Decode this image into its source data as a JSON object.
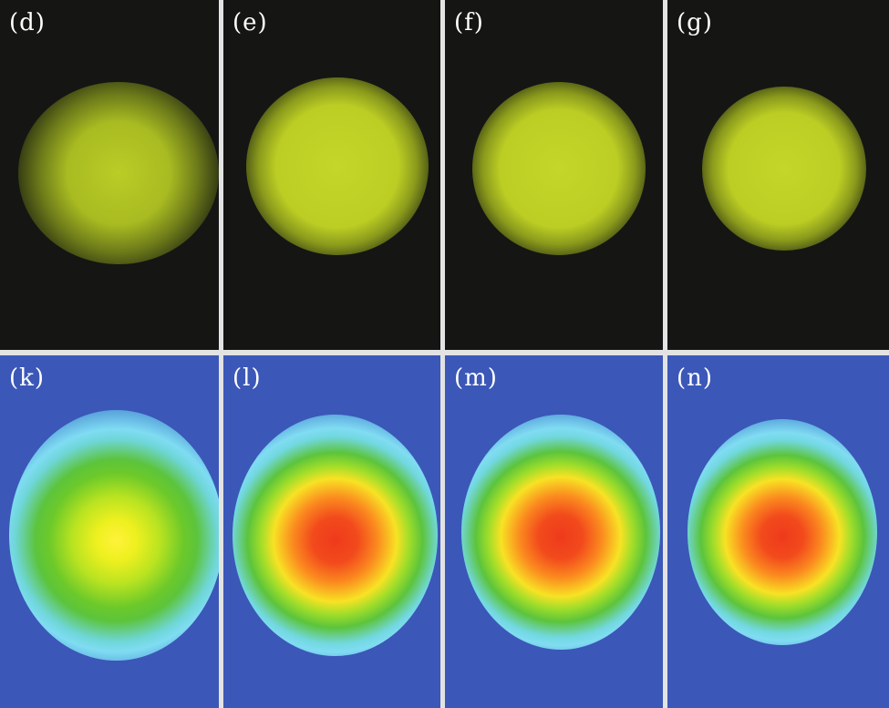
{
  "figure": {
    "top_row": [
      {
        "label": "(d)"
      },
      {
        "label": "(e)"
      },
      {
        "label": "(f)"
      },
      {
        "label": "(g)"
      }
    ],
    "bottom_row": [
      {
        "label": "(k)"
      },
      {
        "label": "(l)"
      },
      {
        "label": "(m)"
      },
      {
        "label": "(n)"
      }
    ]
  }
}
